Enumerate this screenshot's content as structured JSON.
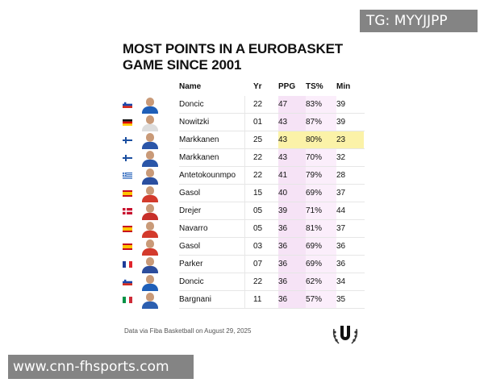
{
  "watermarks": {
    "top": "TG: MYYJJPP",
    "bottom": "www.cnn-fhsports.com"
  },
  "title_line1": "MOST POINTS IN A EUROBASKET",
  "title_line2": "GAME SINCE 2001",
  "headers": {
    "name": "Name",
    "yr": "Yr",
    "ppg": "PPG",
    "ts": "TS%",
    "min": "Min"
  },
  "rows": [
    {
      "name": "Doncic",
      "yr": "22",
      "ppg": "47",
      "ts": "83%",
      "min": "39",
      "flag": "slovenia",
      "jersey": "#1f5fb8"
    },
    {
      "name": "Nowitzki",
      "yr": "01",
      "ppg": "43",
      "ts": "87%",
      "min": "39",
      "flag": "germany",
      "jersey": "#dddddd"
    },
    {
      "name": "Markkanen",
      "yr": "25",
      "ppg": "43",
      "ts": "80%",
      "min": "23",
      "flag": "finland",
      "jersey": "#2b56a8",
      "highlight": true
    },
    {
      "name": "Markkanen",
      "yr": "22",
      "ppg": "43",
      "ts": "70%",
      "min": "32",
      "flag": "finland",
      "jersey": "#2b56a8"
    },
    {
      "name": "Antetokounmpo",
      "yr": "22",
      "ppg": "41",
      "ts": "79%",
      "min": "28",
      "flag": "greece",
      "jersey": "#2a4fa0"
    },
    {
      "name": "Gasol",
      "yr": "15",
      "ppg": "40",
      "ts": "69%",
      "min": "37",
      "flag": "spain",
      "jersey": "#d33a2c"
    },
    {
      "name": "Drejer",
      "yr": "05",
      "ppg": "39",
      "ts": "71%",
      "min": "44",
      "flag": "denmark",
      "jersey": "#c8302a"
    },
    {
      "name": "Navarro",
      "yr": "05",
      "ppg": "36",
      "ts": "81%",
      "min": "37",
      "flag": "spain",
      "jersey": "#d33a2c"
    },
    {
      "name": "Gasol",
      "yr": "03",
      "ppg": "36",
      "ts": "69%",
      "min": "36",
      "flag": "spain",
      "jersey": "#d33a2c"
    },
    {
      "name": "Parker",
      "yr": "07",
      "ppg": "36",
      "ts": "69%",
      "min": "36",
      "flag": "france",
      "jersey": "#2c4d9c"
    },
    {
      "name": "Doncic",
      "yr": "22",
      "ppg": "36",
      "ts": "62%",
      "min": "34",
      "flag": "slovenia",
      "jersey": "#1f5fb8"
    },
    {
      "name": "Bargnani",
      "yr": "11",
      "ppg": "36",
      "ts": "57%",
      "min": "35",
      "flag": "italy",
      "jersey": "#2c5fb0"
    }
  ],
  "source": "Data via Fiba Basketball on August 29, 2025",
  "colors": {
    "ppg_column": "#f6e3f6",
    "ts_column": "#fbeefb",
    "highlight": "#fbf2a8"
  }
}
